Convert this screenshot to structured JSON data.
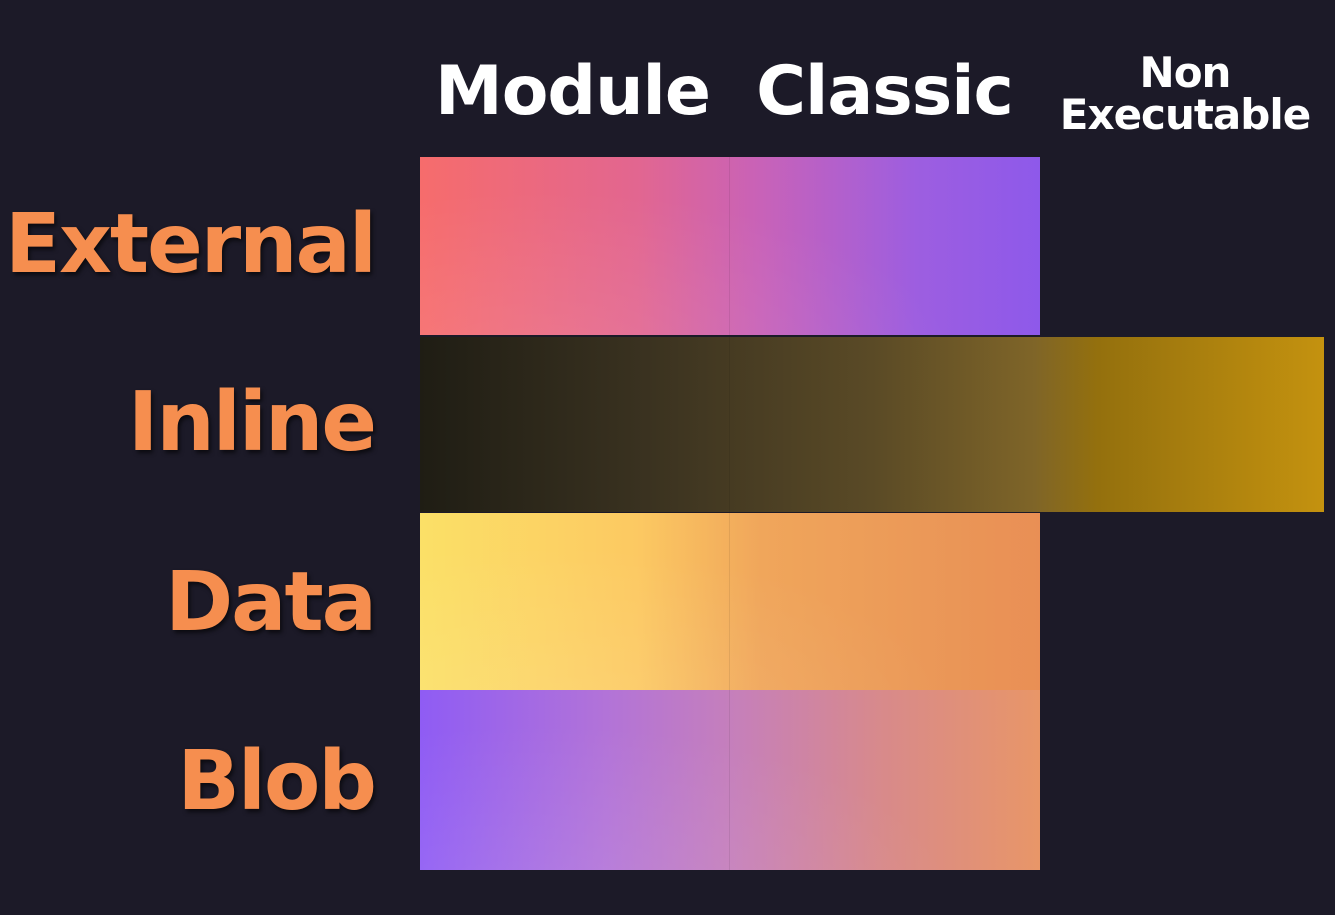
{
  "columns": {
    "module": "Module",
    "classic": "Classic",
    "non_executable_line1": "Non",
    "non_executable_line2": "Executable"
  },
  "rows": {
    "external": "External",
    "inline": "Inline",
    "data": "Data",
    "blob": "Blob"
  },
  "colors": {
    "background": "#1c1a28",
    "header_text": "#ffffff",
    "row_label_text": "#f68e4f"
  }
}
